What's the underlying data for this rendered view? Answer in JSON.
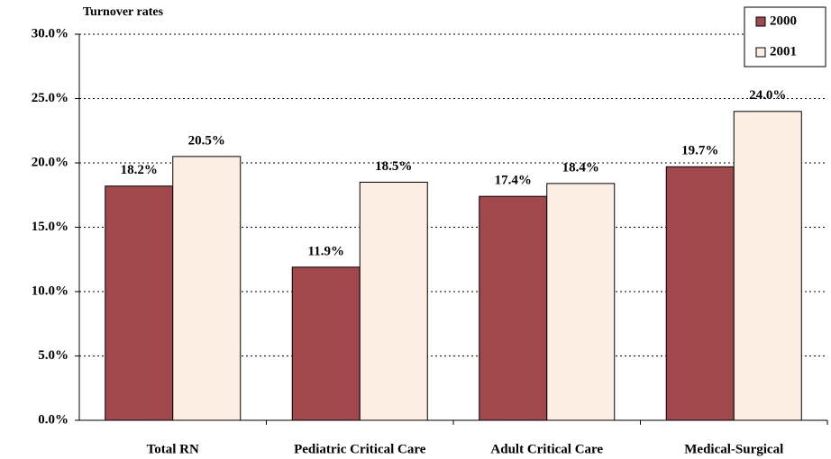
{
  "chart_data": {
    "type": "bar",
    "y_label": "Turnover rates",
    "categories": [
      "Total RN",
      "Pediatric Critical Care",
      "Adult Critical Care",
      "Medical-Surgical"
    ],
    "series": [
      {
        "name": "2000",
        "color": "#a0484c",
        "values": [
          18.2,
          11.9,
          17.4,
          19.7
        ],
        "value_labels": [
          "18.2%",
          "11.9%",
          "17.4%",
          "19.7%"
        ]
      },
      {
        "name": "2001",
        "color": "#fdeee4",
        "values": [
          20.5,
          18.5,
          18.4,
          24.0
        ],
        "value_labels": [
          "20.5%",
          "18.5%",
          "18.4%",
          "24.0%"
        ]
      }
    ],
    "ylim": [
      0,
      30
    ],
    "yticks": [
      {
        "value": 0,
        "label": "0.0%"
      },
      {
        "value": 5,
        "label": "5.0%"
      },
      {
        "value": 10,
        "label": "10.0%"
      },
      {
        "value": 15,
        "label": "15.0%"
      },
      {
        "value": 20,
        "label": "20.0%"
      },
      {
        "value": 25,
        "label": "25.0%"
      },
      {
        "value": 30,
        "label": "30.0%"
      }
    ],
    "grid": true,
    "legend": "top-right"
  }
}
